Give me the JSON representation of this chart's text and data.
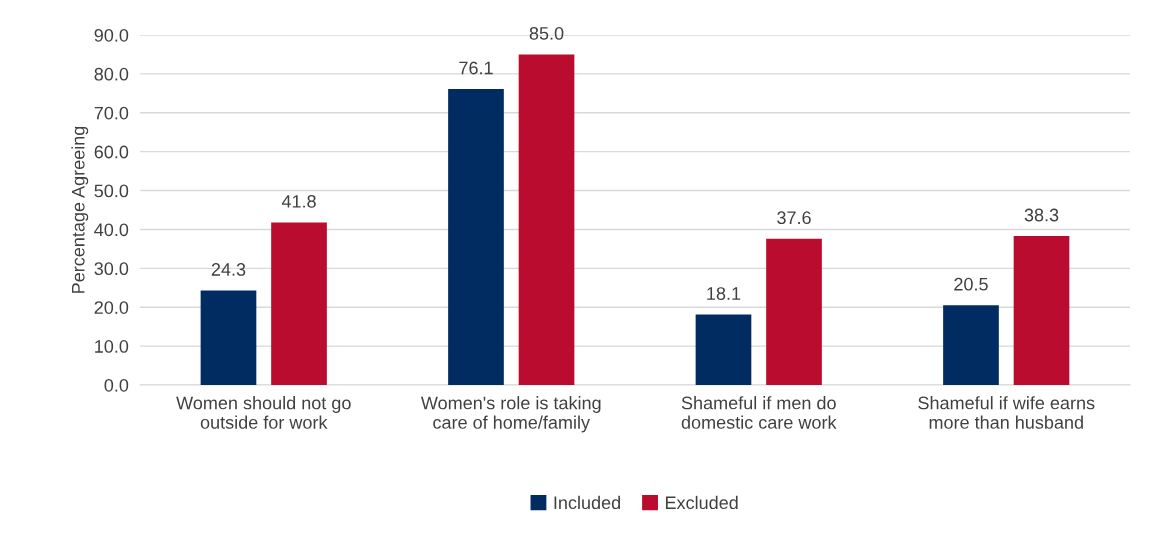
{
  "chart_data": {
    "type": "bar",
    "ylabel": "Percentage Agreeing",
    "categories": [
      "Women should not go\noutside for work",
      "Women's role is taking\ncare of home/family",
      "Shameful if men do\ndomestic care work",
      "Shameful if wife earns\nmore than husband"
    ],
    "series": [
      {
        "name": "Included",
        "color": "#002c62",
        "values": [
          24.3,
          76.1,
          18.1,
          20.5
        ],
        "value_labels": [
          "24.3",
          "76.1",
          "18.1",
          "20.5"
        ]
      },
      {
        "name": "Excluded",
        "color": "#ba0c2f",
        "values": [
          41.8,
          85.0,
          37.6,
          38.3
        ],
        "value_labels": [
          "41.8",
          "85.0",
          "37.6",
          "38.3"
        ]
      }
    ],
    "ylim": [
      0,
      90
    ],
    "yticks": [
      {
        "value": 0,
        "label": "0.0"
      },
      {
        "value": 10,
        "label": "10.0"
      },
      {
        "value": 20,
        "label": "20.0"
      },
      {
        "value": 30,
        "label": "30.0"
      },
      {
        "value": 40,
        "label": "40.0"
      },
      {
        "value": 50,
        "label": "50.0"
      },
      {
        "value": 60,
        "label": "60.0"
      },
      {
        "value": 70,
        "label": "70.0"
      },
      {
        "value": 80,
        "label": "80.0"
      },
      {
        "value": 90,
        "label": "90.0"
      }
    ],
    "grid": "y",
    "legend": "bottom"
  }
}
